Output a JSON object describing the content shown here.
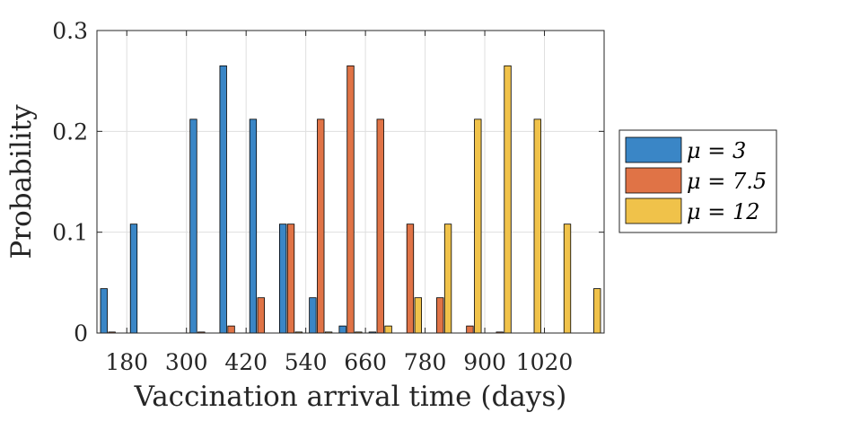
{
  "chart_data": {
    "type": "bar",
    "xlabel": "Vaccination arrival time (days)",
    "ylabel": "Probability",
    "ylim": [
      0,
      0.3
    ],
    "yticks": [
      0,
      0.1,
      0.2,
      0.3
    ],
    "ytick_labels": [
      "0",
      "0.1",
      "0.2",
      "0.3"
    ],
    "xlim": [
      120,
      1140
    ],
    "xticks": [
      180,
      300,
      420,
      540,
      660,
      780,
      900,
      1020
    ],
    "xtick_labels": [
      "180",
      "300",
      "420",
      "540",
      "660",
      "780",
      "900",
      "1020"
    ],
    "grid": true,
    "legend_position": "outside-right",
    "colors": [
      "#3a86c6",
      "#e07346",
      "#f0c24a"
    ],
    "x": [
      150,
      210,
      270,
      330,
      390,
      450,
      510,
      570,
      630,
      690,
      750,
      810,
      870,
      930,
      990,
      1050,
      1110
    ],
    "series": [
      {
        "name": "μ = 3",
        "values": [
          0.044,
          0.108,
          0.0,
          0.212,
          0.265,
          0.212,
          0.108,
          0.035,
          0.007,
          0.001,
          0.0,
          0.0,
          0.0,
          0.0,
          0.0,
          0.0,
          0.0
        ]
      },
      {
        "name": "μ = 7.5",
        "values": [
          0.001,
          0.0,
          0.0,
          0.001,
          0.007,
          0.035,
          0.108,
          0.212,
          0.265,
          0.212,
          0.108,
          0.035,
          0.007,
          0.001,
          0.0,
          0.0,
          0.0
        ]
      },
      {
        "name": "μ = 12",
        "values": [
          0.0,
          0.0,
          0.0,
          0.0,
          0.0,
          0.0,
          0.001,
          0.001,
          0.001,
          0.007,
          0.035,
          0.108,
          0.212,
          0.265,
          0.212,
          0.108,
          0.044
        ]
      }
    ]
  }
}
